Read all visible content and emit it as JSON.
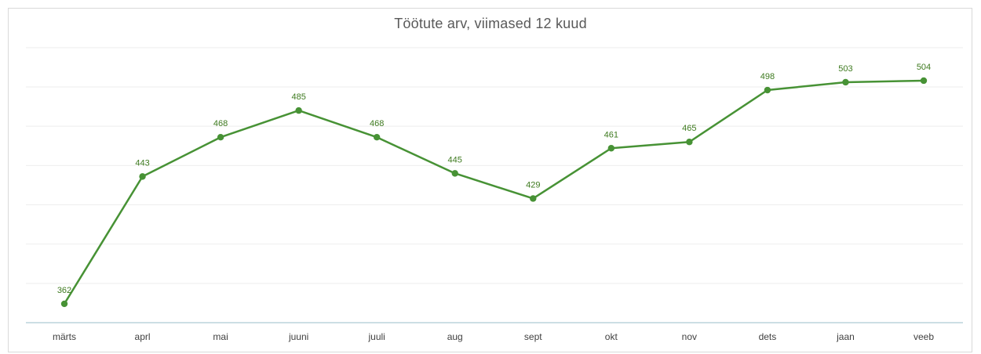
{
  "chart_data": {
    "type": "line",
    "title": "Töötute arv, viimased 12 kuud",
    "categories": [
      "märts",
      "aprl",
      "mai",
      "juuni",
      "juuli",
      "aug",
      "sept",
      "okt",
      "nov",
      "dets",
      "jaan",
      "veeb"
    ],
    "series": [
      {
        "values": [
          362,
          443,
          468,
          485,
          468,
          445,
          429,
          461,
          465,
          498,
          503,
          504
        ]
      }
    ],
    "ylim": [
      350,
      525
    ],
    "grid": true,
    "data_labels": true,
    "color": "#479235"
  }
}
